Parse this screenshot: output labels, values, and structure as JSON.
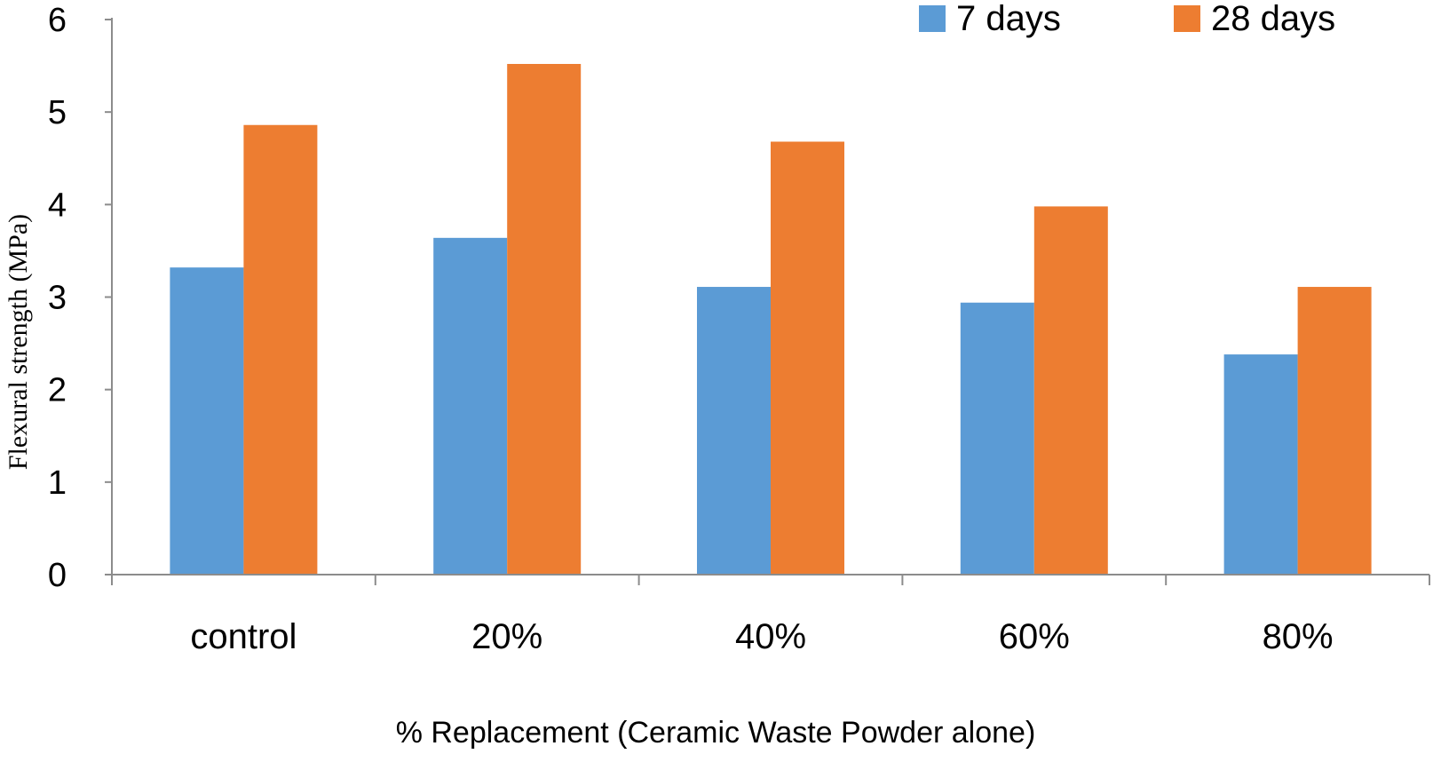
{
  "chart_data": {
    "type": "bar",
    "title": "",
    "xlabel": "% Replacement (Ceramic Waste Powder alone)",
    "ylabel": "Flexural strength (MPa)",
    "ylim": [
      0,
      6
    ],
    "yticks": [
      "0",
      "1",
      "2",
      "3",
      "4",
      "5",
      "6"
    ],
    "categories": [
      "control",
      "20%",
      "40%",
      "60%",
      "80%"
    ],
    "series": [
      {
        "name": "7 days",
        "color": "#5b9bd5",
        "values": [
          3.32,
          3.64,
          3.11,
          2.94,
          2.38
        ]
      },
      {
        "name": "28 days",
        "color": "#ed7d31",
        "values": [
          4.86,
          5.52,
          4.68,
          3.98,
          3.11
        ]
      }
    ],
    "legend_position": "top-right",
    "grid": false
  }
}
